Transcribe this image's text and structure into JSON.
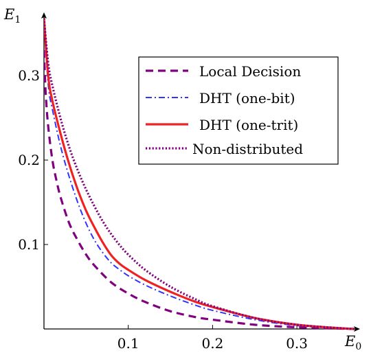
{
  "chart_data": {
    "type": "line",
    "title": "",
    "xlabel": "E",
    "xlabel_sub": "0",
    "ylabel": "E",
    "ylabel_sub": "1",
    "xlim": [
      0,
      0.37
    ],
    "ylim": [
      0,
      0.37
    ],
    "xticks": [
      "0.1",
      "0.2",
      "0.3"
    ],
    "yticks": [
      "0.1",
      "0.2",
      "0.3"
    ],
    "xtick_values": [
      0.1,
      0.2,
      0.3
    ],
    "ytick_values": [
      0.1,
      0.2,
      0.3
    ],
    "grid": false,
    "legend_position": "top-right",
    "series": [
      {
        "name": "Local Decision",
        "color": "#800080",
        "style": "dashed",
        "x": [
          0.0,
          0.002,
          0.005,
          0.01,
          0.015,
          0.02,
          0.03,
          0.04,
          0.05,
          0.06,
          0.08,
          0.1,
          0.12,
          0.15,
          0.18,
          0.2,
          0.25,
          0.3,
          0.35,
          0.368
        ],
        "y": [
          0.33,
          0.28,
          0.24,
          0.2,
          0.175,
          0.155,
          0.125,
          0.105,
          0.088,
          0.075,
          0.055,
          0.042,
          0.032,
          0.021,
          0.014,
          0.011,
          0.005,
          0.002,
          0.0005,
          0.0
        ]
      },
      {
        "name": "DHT (one-bit)",
        "color": "#3333ff",
        "style": "dashdot",
        "x": [
          0.0,
          0.005,
          0.01,
          0.02,
          0.03,
          0.04,
          0.05,
          0.06,
          0.07,
          0.08,
          0.09,
          0.1,
          0.12,
          0.15,
          0.18,
          0.2,
          0.25,
          0.3,
          0.35,
          0.368
        ],
        "y": [
          0.368,
          0.29,
          0.26,
          0.215,
          0.18,
          0.15,
          0.125,
          0.105,
          0.09,
          0.078,
          0.07,
          0.063,
          0.052,
          0.039,
          0.028,
          0.022,
          0.011,
          0.004,
          0.001,
          0.0
        ]
      },
      {
        "name": "DHT (one-trit)",
        "color": "#ee2222",
        "style": "solid",
        "x": [
          0.0,
          0.005,
          0.01,
          0.02,
          0.03,
          0.04,
          0.05,
          0.06,
          0.07,
          0.08,
          0.09,
          0.1,
          0.12,
          0.15,
          0.18,
          0.2,
          0.25,
          0.3,
          0.35,
          0.368
        ],
        "y": [
          0.368,
          0.3,
          0.27,
          0.23,
          0.195,
          0.165,
          0.14,
          0.12,
          0.102,
          0.087,
          0.077,
          0.07,
          0.058,
          0.044,
          0.032,
          0.026,
          0.013,
          0.005,
          0.001,
          0.0
        ]
      },
      {
        "name": "Non-distributed",
        "color": "#800080",
        "style": "dotted",
        "x": [
          0.0,
          0.005,
          0.01,
          0.02,
          0.03,
          0.04,
          0.05,
          0.06,
          0.07,
          0.08,
          0.09,
          0.1,
          0.12,
          0.15,
          0.18,
          0.2,
          0.25,
          0.3,
          0.35,
          0.368
        ],
        "y": [
          0.368,
          0.315,
          0.288,
          0.248,
          0.215,
          0.188,
          0.165,
          0.145,
          0.127,
          0.112,
          0.099,
          0.088,
          0.07,
          0.05,
          0.035,
          0.027,
          0.013,
          0.005,
          0.001,
          0.0
        ]
      }
    ]
  }
}
